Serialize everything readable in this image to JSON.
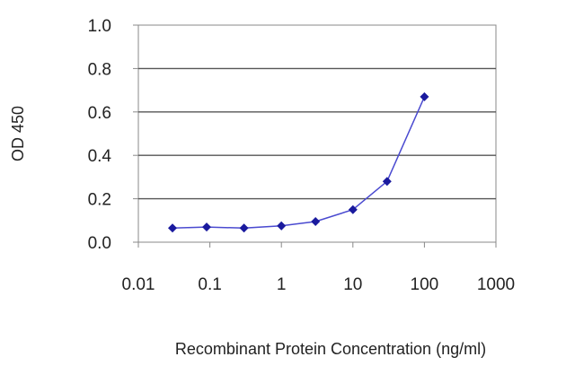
{
  "chart_data": {
    "type": "scatter",
    "title": "",
    "xlabel": "Recombinant Protein Concentration (ng/ml)",
    "ylabel": "OD 450",
    "x_scale": "log",
    "xlim": [
      0.01,
      1000
    ],
    "ylim": [
      0.0,
      1.0
    ],
    "x_ticks": [
      0.01,
      0.1,
      1,
      10,
      100,
      1000
    ],
    "x_tick_labels": [
      "0.01",
      "0.1",
      "1",
      "10",
      "100",
      "1000"
    ],
    "y_ticks": [
      0.0,
      0.2,
      0.4,
      0.6,
      0.8,
      1.0
    ],
    "y_tick_labels": [
      "0.0",
      "0.2",
      "0.4",
      "0.6",
      "0.8",
      "1.0"
    ],
    "grid": "horizontal",
    "legend": "none",
    "series": [
      {
        "x": [
          0.03,
          0.09,
          0.3,
          1,
          3,
          10,
          30,
          100
        ],
        "y": [
          0.065,
          0.07,
          0.065,
          0.075,
          0.095,
          0.15,
          0.28,
          0.67
        ]
      }
    ],
    "colors": {
      "marker": "#1a1a9e",
      "line": "#4a4ad0",
      "grid": "#555555",
      "frame": "#888888"
    }
  }
}
